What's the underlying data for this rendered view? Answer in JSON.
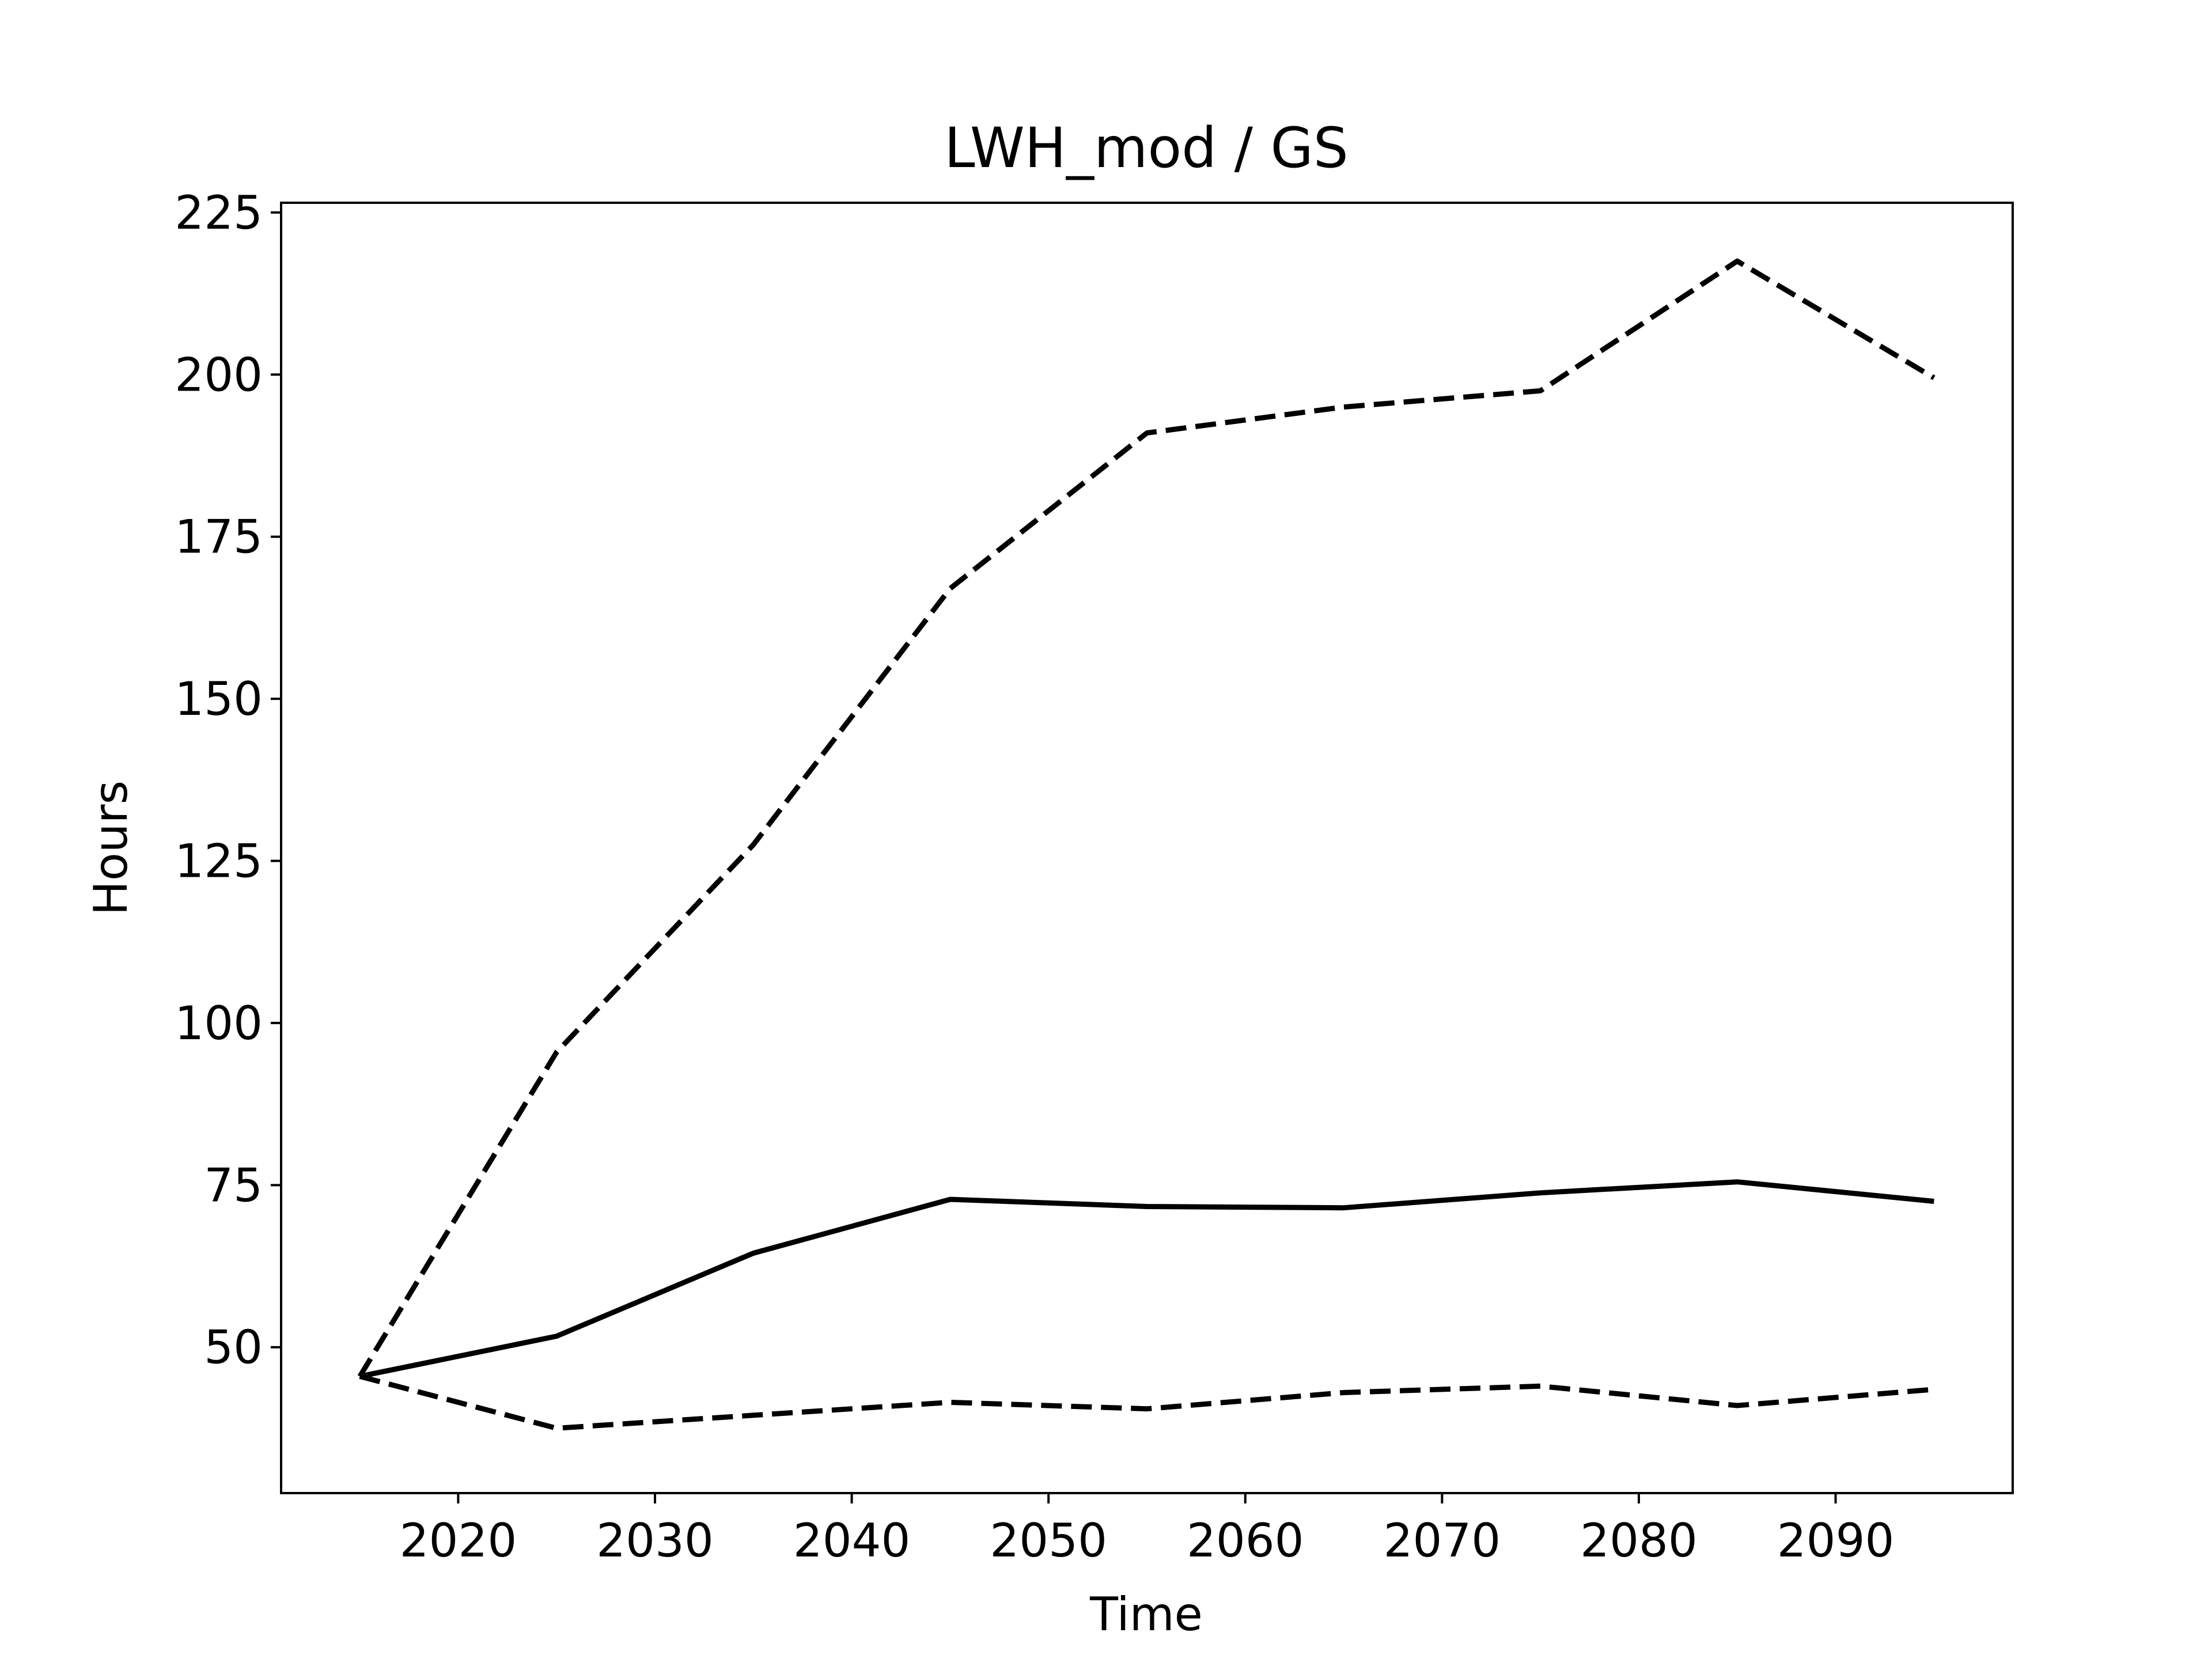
{
  "chart_data": {
    "type": "line",
    "title": "LWH_mod / GS",
    "xlabel": "Time",
    "ylabel": "Hours",
    "xlim": [
      2011,
      2099
    ],
    "ylim": [
      27.5,
      226.5
    ],
    "xticks": [
      2020,
      2030,
      2040,
      2050,
      2060,
      2070,
      2080,
      2090
    ],
    "yticks": [
      50,
      75,
      100,
      125,
      150,
      175,
      200,
      225
    ],
    "grid": false,
    "legend": "none",
    "x": [
      2015,
      2025,
      2035,
      2045,
      2055,
      2065,
      2075,
      2085,
      2095
    ],
    "series": [
      {
        "style": "solid",
        "color": "#000000",
        "values": [
          45.5,
          51.7,
          64.5,
          72.8,
          71.7,
          71.5,
          73.8,
          75.5,
          72.5
        ]
      },
      {
        "style": "dashed",
        "color": "#000000",
        "values": [
          45.5,
          95.5,
          127.5,
          167.0,
          191.0,
          195.0,
          197.5,
          217.5,
          199.5
        ]
      },
      {
        "style": "dashed",
        "color": "#000000",
        "values": [
          45.5,
          37.5,
          39.5,
          41.5,
          40.5,
          43.0,
          44.0,
          41.0,
          43.5
        ]
      }
    ]
  }
}
